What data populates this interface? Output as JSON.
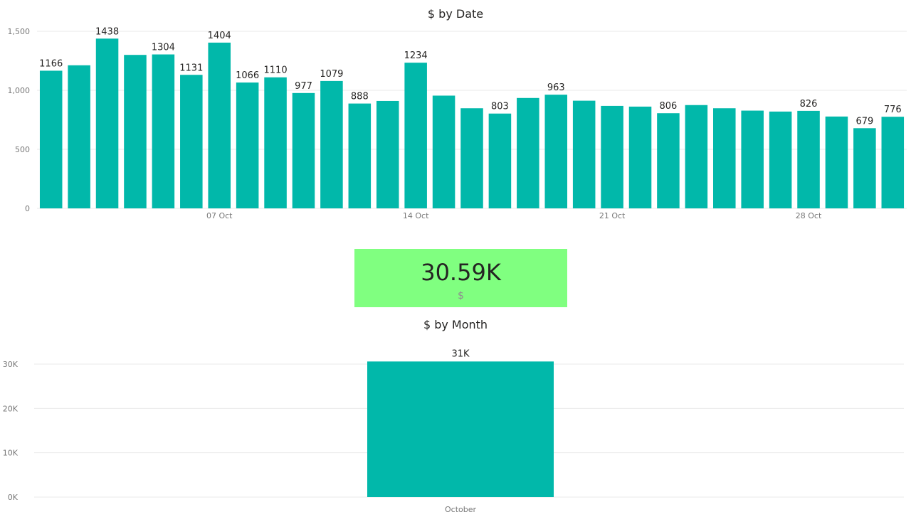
{
  "colors": {
    "bar": "#01B8AA",
    "card_background": "#80FF80",
    "gridline": "#E9E9E9"
  },
  "kpi_card": {
    "value": "30.59K",
    "label": "$"
  },
  "chart_data": [
    {
      "type": "bar",
      "title": "$ by Date",
      "xlabel": "",
      "ylabel": "",
      "ylim": [
        0,
        1500
      ],
      "yticks": [
        0,
        500,
        1000,
        1500
      ],
      "ytick_labels": [
        "0",
        "500",
        "1,000",
        "1,500"
      ],
      "x": [
        "2018-10-01",
        "2018-10-02",
        "2018-10-03",
        "2018-10-04",
        "2018-10-05",
        "2018-10-06",
        "2018-10-07",
        "2018-10-08",
        "2018-10-09",
        "2018-10-10",
        "2018-10-11",
        "2018-10-12",
        "2018-10-13",
        "2018-10-14",
        "2018-10-15",
        "2018-10-16",
        "2018-10-17",
        "2018-10-18",
        "2018-10-19",
        "2018-10-20",
        "2018-10-21",
        "2018-10-22",
        "2018-10-23",
        "2018-10-24",
        "2018-10-25",
        "2018-10-26",
        "2018-10-27",
        "2018-10-28",
        "2018-10-29",
        "2018-10-30",
        "2018-10-31"
      ],
      "values": [
        1166,
        1212,
        1438,
        1300,
        1304,
        1131,
        1404,
        1066,
        1110,
        977,
        1079,
        888,
        910,
        1234,
        955,
        848,
        803,
        935,
        963,
        912,
        868,
        862,
        806,
        875,
        848,
        828,
        820,
        826,
        778,
        679,
        776
      ],
      "data_labels": [
        "1166",
        "",
        "1438",
        "",
        "1304",
        "1131",
        "1404",
        "1066",
        "1110",
        "977",
        "1079",
        "888",
        "",
        "1234",
        "",
        "",
        "803",
        "",
        "963",
        "",
        "",
        "",
        "806",
        "",
        "",
        "",
        "",
        "826",
        "",
        "679",
        "776"
      ],
      "xticks": [
        {
          "index": 6,
          "label": "07 Oct"
        },
        {
          "index": 13,
          "label": "14 Oct"
        },
        {
          "index": 20,
          "label": "21 Oct"
        },
        {
          "index": 27,
          "label": "28 Oct"
        }
      ],
      "grid": true,
      "legend": "none"
    },
    {
      "type": "bar",
      "title": "$ by Month",
      "xlabel": "",
      "ylabel": "",
      "ylim": [
        0,
        30000
      ],
      "yticks": [
        0,
        10000,
        20000,
        30000
      ],
      "ytick_labels": [
        "0K",
        "10K",
        "20K",
        "30K"
      ],
      "categories": [
        "October"
      ],
      "values": [
        30590
      ],
      "data_labels": [
        "31K"
      ],
      "grid": true,
      "legend": "none"
    }
  ]
}
